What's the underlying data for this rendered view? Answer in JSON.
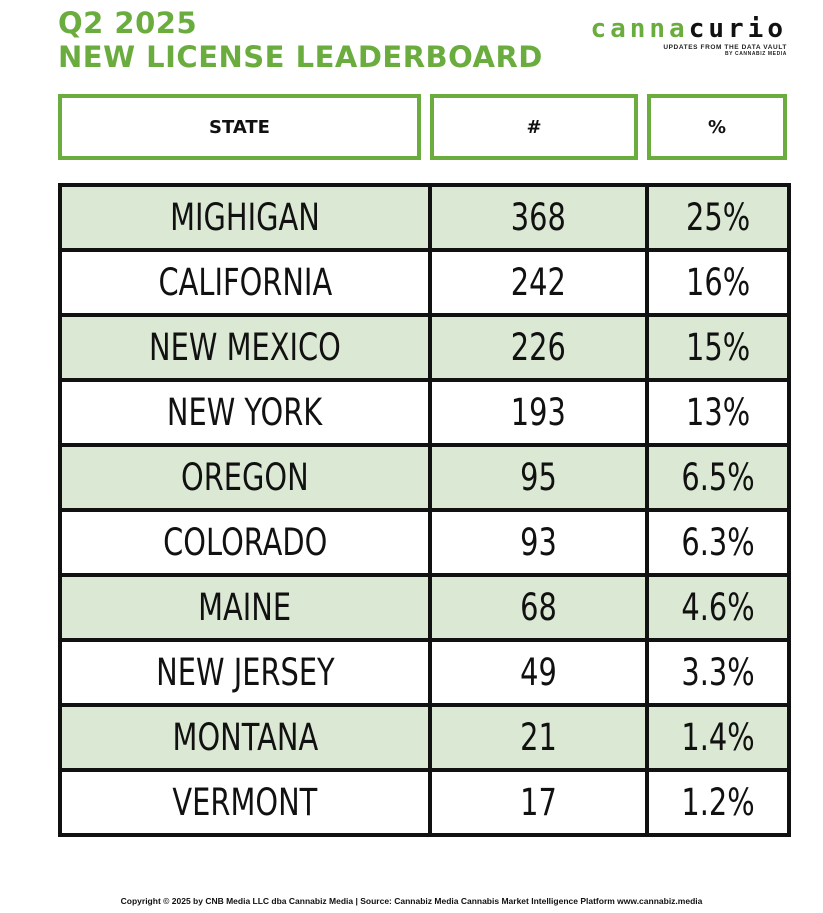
{
  "title": {
    "line1": "Q2 2025",
    "line2": "NEW LICENSE LEADERBOARD"
  },
  "logo": {
    "part1": "canna",
    "part2": "curio",
    "tagline": "UPDATES FROM THE DATA VAULT",
    "byline": "BY CANNABIZ MEDIA"
  },
  "headers": {
    "state": "STATE",
    "count": "#",
    "percent": "%"
  },
  "rows": [
    {
      "state": "MIGHIGAN",
      "count": "368",
      "percent": "25%"
    },
    {
      "state": "CALIFORNIA",
      "count": "242",
      "percent": "16%"
    },
    {
      "state": "NEW MEXICO",
      "count": "226",
      "percent": "15%"
    },
    {
      "state": "NEW YORK",
      "count": "193",
      "percent": "13%"
    },
    {
      "state": "OREGON",
      "count": "95",
      "percent": "6.5%"
    },
    {
      "state": "COLORADO",
      "count": "93",
      "percent": "6.3%"
    },
    {
      "state": "MAINE",
      "count": "68",
      "percent": "4.6%"
    },
    {
      "state": "NEW JERSEY",
      "count": "49",
      "percent": "3.3%"
    },
    {
      "state": "MONTANA",
      "count": "21",
      "percent": "1.4%"
    },
    {
      "state": "VERMONT",
      "count": "17",
      "percent": "1.2%"
    }
  ],
  "footer": "Copyright © 2025 by CNB Media LLC dba Cannabiz Media | Source: Cannabiz Media Cannabis Market Intelligence Platform www.cannabiz.media",
  "colors": {
    "accent": "#6aad3e",
    "shade": "#dbe8d3",
    "border": "#111111"
  }
}
